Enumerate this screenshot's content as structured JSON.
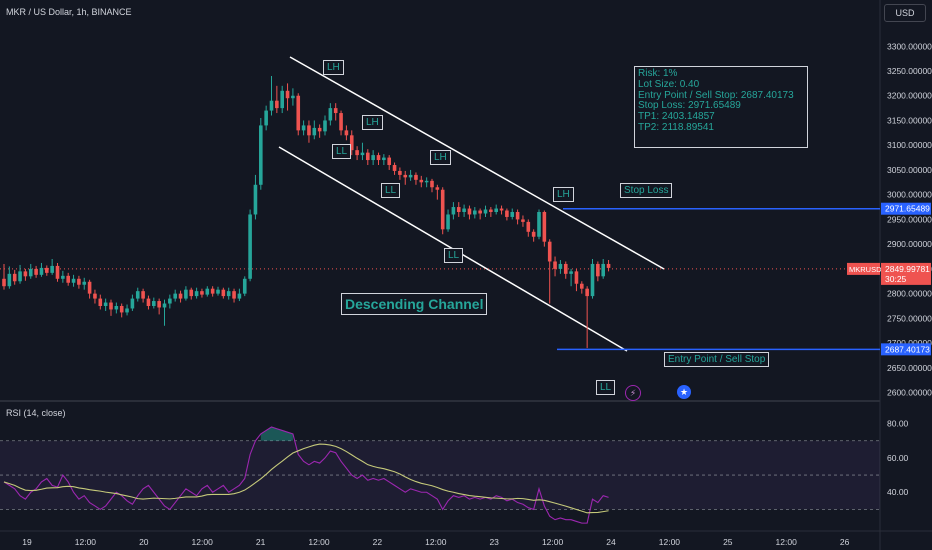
{
  "header": {
    "symbol": "MKR / US Dollar, 1h, BINANCE"
  },
  "currency_button": "USD",
  "rsi_header": "RSI (14, close)",
  "colors": {
    "up": "#26a69a",
    "down": "#ef5350",
    "bg": "#131722",
    "rsi_line": "#9c27b0",
    "rsi_ma": "#c5c97a",
    "price_tag": "#ef5350",
    "blue_line": "#2962ff"
  },
  "chart_data": {
    "type": "candlestick",
    "x_ticks": [
      "19",
      "12:00",
      "20",
      "12:00",
      "21",
      "12:00",
      "22",
      "12:00",
      "23",
      "12:00",
      "24",
      "12:00",
      "25",
      "12:00",
      "26"
    ],
    "price_axis": {
      "ticks": [
        "3300.000000",
        "3250.000000",
        "3200.000000",
        "3150.000000",
        "3100.000000",
        "3050.000000",
        "3000.000000",
        "2950.000000",
        "2900.000000",
        "2850.000000",
        "2800.000000",
        "2750.000000",
        "2700.000000",
        "2650.000000",
        "2600.000000"
      ],
      "ylim": [
        2585,
        3345
      ]
    },
    "rsi_axis": {
      "ticks": [
        "80.00",
        "60.00",
        "40.00"
      ],
      "ylim": [
        18,
        92
      ],
      "bands": [
        30,
        50,
        70
      ]
    },
    "current_price": {
      "symbol": "MKRUSD",
      "value": "2849.99781",
      "countdown": "30:25"
    },
    "levels": [
      {
        "name": "stop-loss",
        "value": 2971.65489,
        "label": "2971.65489",
        "text": "Stop Loss"
      },
      {
        "name": "entry",
        "value": 2687.40173,
        "label": "2687.40173",
        "text": "Entry Point / Sell Stop"
      }
    ],
    "candles": [
      [
        2830,
        2815,
        2860,
        2808
      ],
      [
        2815,
        2840,
        2855,
        2810
      ],
      [
        2840,
        2825,
        2848,
        2818
      ],
      [
        2825,
        2845,
        2858,
        2820
      ],
      [
        2845,
        2835,
        2850,
        2826
      ],
      [
        2835,
        2850,
        2860,
        2830
      ],
      [
        2850,
        2838,
        2856,
        2832
      ],
      [
        2838,
        2852,
        2862,
        2834
      ],
      [
        2852,
        2842,
        2857,
        2836
      ],
      [
        2842,
        2856,
        2870,
        2838
      ],
      [
        2856,
        2830,
        2862,
        2824
      ],
      [
        2830,
        2836,
        2846,
        2822
      ],
      [
        2836,
        2822,
        2842,
        2816
      ],
      [
        2822,
        2830,
        2838,
        2814
      ],
      [
        2830,
        2818,
        2836,
        2810
      ],
      [
        2818,
        2824,
        2832,
        2808
      ],
      [
        2824,
        2800,
        2828,
        2790
      ],
      [
        2800,
        2790,
        2808,
        2780
      ],
      [
        2790,
        2775,
        2798,
        2768
      ],
      [
        2775,
        2782,
        2790,
        2765
      ],
      [
        2782,
        2768,
        2788,
        2755
      ],
      [
        2768,
        2775,
        2782,
        2760
      ],
      [
        2775,
        2762,
        2780,
        2752
      ],
      [
        2762,
        2770,
        2778,
        2756
      ],
      [
        2770,
        2790,
        2798,
        2765
      ],
      [
        2790,
        2805,
        2812,
        2784
      ],
      [
        2805,
        2790,
        2810,
        2782
      ],
      [
        2790,
        2775,
        2796,
        2768
      ],
      [
        2775,
        2785,
        2792,
        2770
      ],
      [
        2785,
        2772,
        2790,
        2758
      ],
      [
        2772,
        2780,
        2788,
        2735
      ],
      [
        2780,
        2790,
        2798,
        2770
      ],
      [
        2790,
        2800,
        2808,
        2784
      ],
      [
        2800,
        2790,
        2806,
        2782
      ],
      [
        2790,
        2808,
        2815,
        2786
      ],
      [
        2808,
        2795,
        2812,
        2788
      ],
      [
        2795,
        2805,
        2812,
        2790
      ],
      [
        2805,
        2798,
        2810,
        2792
      ],
      [
        2798,
        2810,
        2815,
        2794
      ],
      [
        2810,
        2800,
        2815,
        2794
      ],
      [
        2800,
        2808,
        2814,
        2796
      ],
      [
        2808,
        2795,
        2812,
        2790
      ],
      [
        2795,
        2805,
        2812,
        2788
      ],
      [
        2805,
        2790,
        2810,
        2782
      ],
      [
        2790,
        2800,
        2810,
        2785
      ],
      [
        2800,
        2830,
        2835,
        2795
      ],
      [
        2830,
        2960,
        2970,
        2825
      ],
      [
        2960,
        3020,
        3040,
        2950
      ],
      [
        3020,
        3140,
        3155,
        3010
      ],
      [
        3140,
        3170,
        3180,
        3130
      ],
      [
        3170,
        3190,
        3240,
        3160
      ],
      [
        3190,
        3175,
        3220,
        3165
      ],
      [
        3175,
        3210,
        3220,
        3165
      ],
      [
        3210,
        3195,
        3225,
        3170
      ],
      [
        3195,
        3200,
        3215,
        3180
      ],
      [
        3200,
        3130,
        3205,
        3120
      ],
      [
        3130,
        3140,
        3150,
        3120
      ],
      [
        3140,
        3120,
        3150,
        3105
      ],
      [
        3120,
        3135,
        3150,
        3112
      ],
      [
        3135,
        3128,
        3142,
        3115
      ],
      [
        3128,
        3150,
        3160,
        3120
      ],
      [
        3150,
        3175,
        3185,
        3140
      ],
      [
        3175,
        3165,
        3185,
        3150
      ],
      [
        3165,
        3130,
        3170,
        3120
      ],
      [
        3130,
        3120,
        3140,
        3110
      ],
      [
        3120,
        3090,
        3130,
        3080
      ],
      [
        3090,
        3080,
        3098,
        3070
      ],
      [
        3080,
        3085,
        3105,
        3070
      ],
      [
        3085,
        3070,
        3092,
        3060
      ],
      [
        3070,
        3080,
        3090,
        3060
      ],
      [
        3080,
        3070,
        3085,
        3060
      ],
      [
        3070,
        3075,
        3082,
        3060
      ],
      [
        3075,
        3060,
        3080,
        3050
      ],
      [
        3060,
        3048,
        3065,
        3040
      ],
      [
        3048,
        3040,
        3055,
        3030
      ],
      [
        3040,
        3035,
        3048,
        3020
      ],
      [
        3035,
        3040,
        3050,
        3028
      ],
      [
        3040,
        3030,
        3045,
        3020
      ],
      [
        3030,
        3025,
        3038,
        3015
      ],
      [
        3025,
        3028,
        3035,
        3015
      ],
      [
        3028,
        3015,
        3032,
        3005
      ],
      [
        3015,
        3010,
        3020,
        2990
      ],
      [
        3010,
        2930,
        3015,
        2920
      ],
      [
        2930,
        2960,
        2970,
        2925
      ],
      [
        2960,
        2975,
        2985,
        2950
      ],
      [
        2975,
        2965,
        2985,
        2955
      ],
      [
        2965,
        2972,
        2980,
        2955
      ],
      [
        2972,
        2960,
        2978,
        2950
      ],
      [
        2960,
        2968,
        2975,
        2952
      ],
      [
        2968,
        2962,
        2972,
        2950
      ],
      [
        2962,
        2970,
        2978,
        2955
      ],
      [
        2970,
        2965,
        2975,
        2955
      ],
      [
        2965,
        2972,
        2980,
        2960
      ],
      [
        2972,
        2968,
        2978,
        2960
      ],
      [
        2968,
        2955,
        2972,
        2948
      ],
      [
        2955,
        2965,
        2972,
        2950
      ],
      [
        2965,
        2950,
        2970,
        2940
      ],
      [
        2950,
        2945,
        2958,
        2935
      ],
      [
        2945,
        2925,
        2950,
        2915
      ],
      [
        2925,
        2915,
        2930,
        2905
      ],
      [
        2915,
        2965,
        2970,
        2910
      ],
      [
        2965,
        2905,
        2968,
        2895
      ],
      [
        2905,
        2865,
        2910,
        2780
      ],
      [
        2865,
        2850,
        2875,
        2835
      ],
      [
        2850,
        2860,
        2868,
        2840
      ],
      [
        2860,
        2840,
        2865,
        2830
      ],
      [
        2840,
        2845,
        2850,
        2815
      ],
      [
        2845,
        2820,
        2850,
        2805
      ],
      [
        2820,
        2810,
        2825,
        2800
      ],
      [
        2810,
        2795,
        2815,
        2690
      ],
      [
        2795,
        2860,
        2870,
        2790
      ],
      [
        2860,
        2835,
        2865,
        2825
      ],
      [
        2835,
        2860,
        2870,
        2830
      ],
      [
        2860,
        2852,
        2868,
        2845
      ]
    ],
    "rsi": [
      46,
      44,
      42,
      38,
      36,
      40,
      42,
      46,
      48,
      44,
      43,
      50,
      46,
      40,
      36,
      38,
      34,
      32,
      30,
      32,
      36,
      40,
      38,
      35,
      33,
      38,
      42,
      44,
      40,
      36,
      32,
      30,
      34,
      38,
      42,
      40,
      38,
      42,
      44,
      40,
      42,
      44,
      40,
      42,
      44,
      48,
      62,
      70,
      74,
      76,
      78,
      77,
      76,
      75,
      74,
      62,
      58,
      56,
      58,
      57,
      60,
      64,
      63,
      58,
      54,
      50,
      48,
      50,
      47,
      48,
      47,
      48,
      46,
      44,
      42,
      40,
      42,
      41,
      40,
      40,
      38,
      36,
      30,
      35,
      38,
      37,
      38,
      36,
      37,
      36,
      37,
      36,
      38,
      37,
      35,
      36,
      34,
      33,
      31,
      30,
      42,
      32,
      26,
      24,
      25,
      24,
      24,
      23,
      22,
      22,
      36,
      34,
      38,
      37
    ],
    "annotations": {
      "pivots": [
        {
          "text": "LH",
          "price": 3258
        },
        {
          "text": "LH",
          "price": 3147
        },
        {
          "text": "LL",
          "price": 3089
        },
        {
          "text": "LH",
          "price": 3076
        },
        {
          "text": "LL",
          "price": 3010
        },
        {
          "text": "LL",
          "price": 2878
        },
        {
          "text": "LH",
          "price": 3001
        },
        {
          "text": "LL",
          "price": 2612
        }
      ],
      "channel_label": "Descending Channel",
      "risk_box": [
        "Risk: 1%",
        "Lot Size: 0.40",
        "Entry Point / Sell Stop: 2687.40173",
        "Stop Loss: 2971.65489",
        "TP1: 2403.14857",
        "TP2: 2118.89541"
      ]
    }
  }
}
